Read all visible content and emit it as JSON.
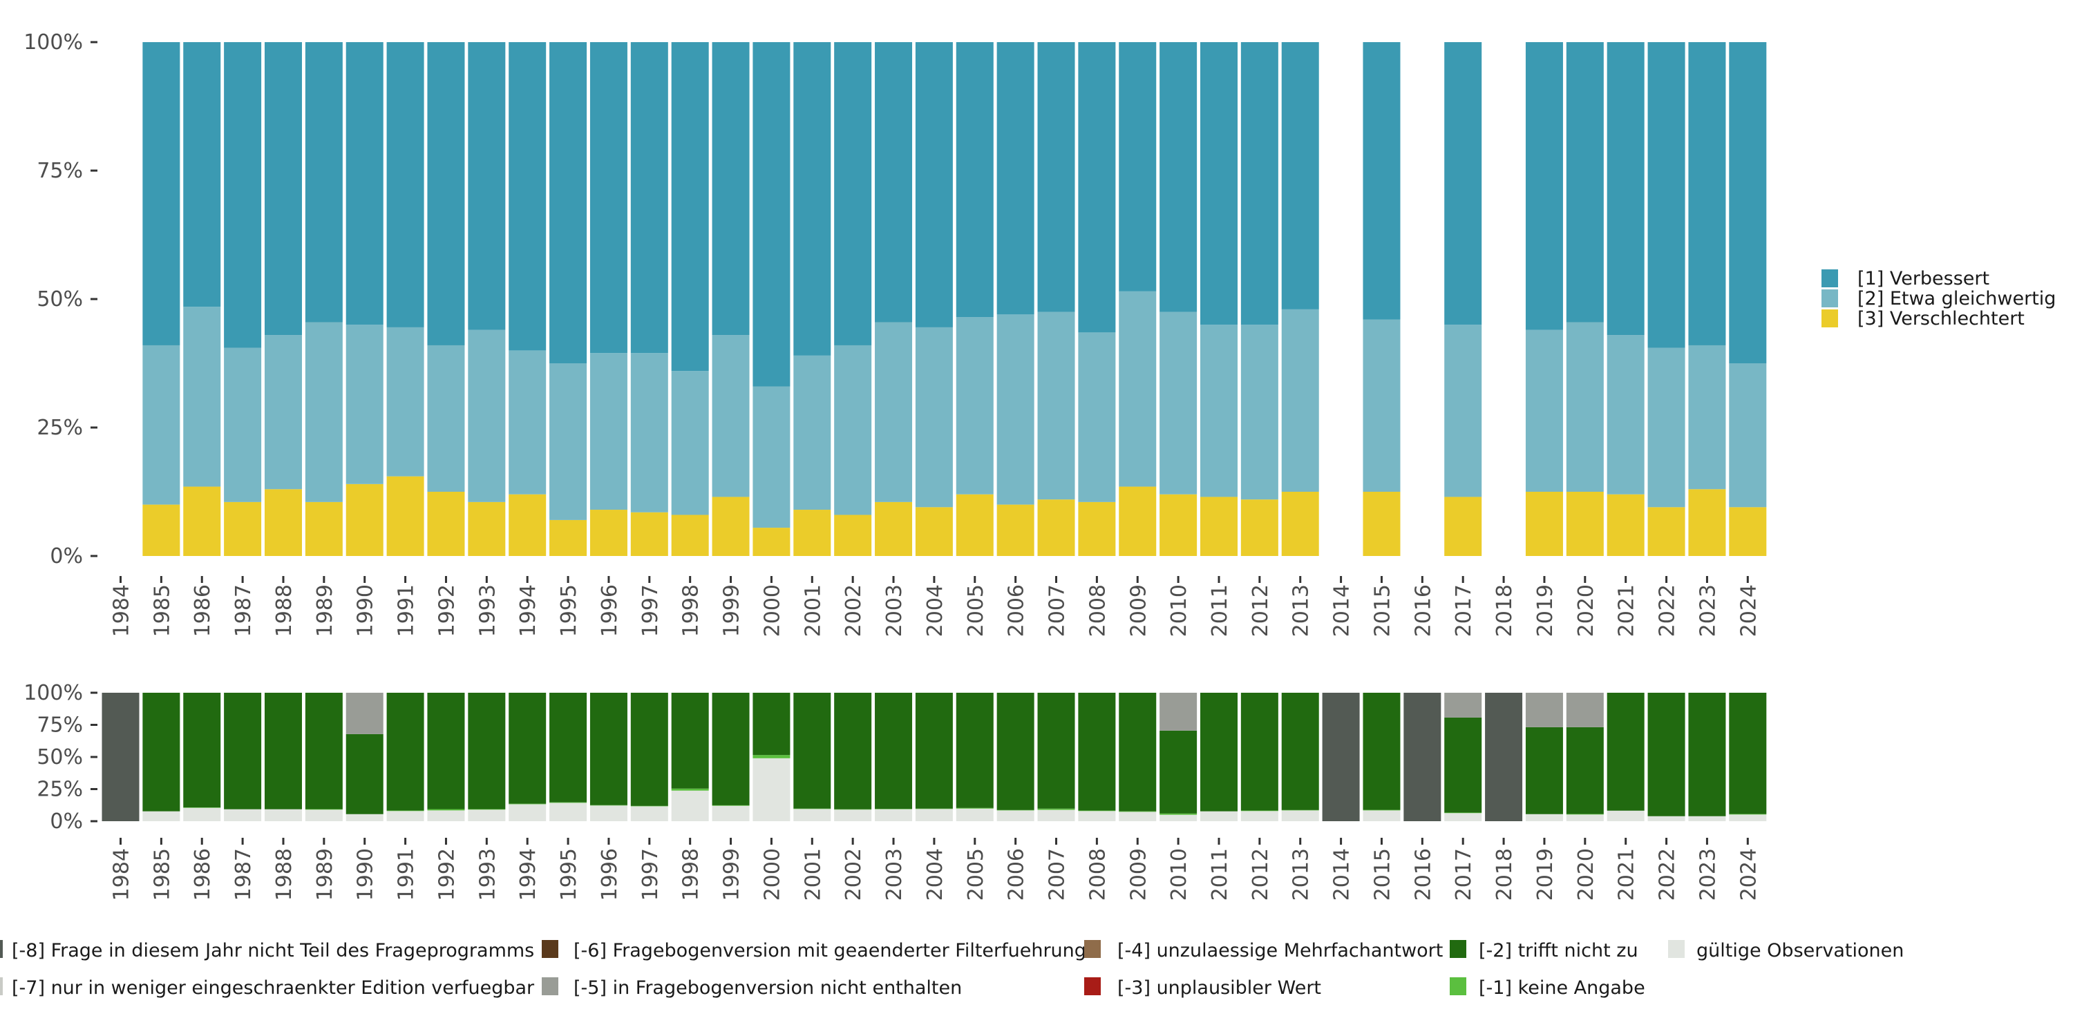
{
  "chart_data": [
    {
      "type": "bar",
      "stacked": true,
      "normalized": true,
      "title": "",
      "xlabel": "",
      "ylabel": "",
      "ylim": [
        0,
        100
      ],
      "yticks": [
        "0%",
        "25%",
        "50%",
        "75%",
        "100%"
      ],
      "grid": false,
      "legend_position": "right",
      "categories": [
        "1984",
        "1985",
        "1986",
        "1987",
        "1988",
        "1989",
        "1990",
        "1991",
        "1992",
        "1993",
        "1994",
        "1995",
        "1996",
        "1997",
        "1998",
        "1999",
        "2000",
        "2001",
        "2002",
        "2003",
        "2004",
        "2005",
        "2006",
        "2007",
        "2008",
        "2009",
        "2010",
        "2011",
        "2012",
        "2013",
        "2014",
        "2015",
        "2016",
        "2017",
        "2018",
        "2019",
        "2020",
        "2021",
        "2022",
        "2023",
        "2024"
      ],
      "series": [
        {
          "name": "[3] Verschlechtert",
          "color": "#ebcc2a",
          "values": [
            null,
            10,
            13.5,
            10.5,
            13,
            10.5,
            14,
            15.5,
            12.5,
            10.5,
            12,
            7,
            9,
            8.5,
            8,
            11.5,
            5.5,
            9,
            8,
            10.5,
            9.5,
            12,
            10,
            11,
            10.5,
            13.5,
            12,
            11.5,
            11,
            12.5,
            null,
            12.5,
            null,
            11.5,
            null,
            12.5,
            12.5,
            12,
            9.5,
            13,
            9.5
          ]
        },
        {
          "name": "[2] Etwa gleichwertig",
          "color": "#78b7c5",
          "values": [
            null,
            31,
            35,
            30,
            30,
            35,
            31,
            29,
            28.5,
            33.5,
            28,
            30.5,
            30.5,
            31,
            28,
            31.5,
            27.5,
            30,
            33,
            35,
            35,
            34.5,
            37,
            36.5,
            33,
            38,
            35.5,
            33.5,
            34,
            35.5,
            null,
            33.5,
            null,
            33.5,
            null,
            31.5,
            33,
            31,
            31,
            28,
            28
          ]
        },
        {
          "name": "[1] Verbessert",
          "color": "#3b9ab2",
          "values": [
            null,
            59,
            51.5,
            59.5,
            57,
            54.5,
            55,
            55.5,
            59,
            56,
            60,
            62.5,
            60.5,
            60.5,
            64,
            57,
            67,
            61,
            59,
            54.5,
            55.5,
            53.5,
            53,
            52.5,
            56.5,
            48.5,
            52.5,
            55,
            55,
            52,
            null,
            54,
            null,
            55,
            null,
            56,
            54.5,
            57,
            59.5,
            59,
            62.5
          ]
        }
      ]
    },
    {
      "type": "bar",
      "stacked": true,
      "normalized": true,
      "title": "",
      "xlabel": "",
      "ylabel": "",
      "ylim": [
        0,
        100
      ],
      "yticks": [
        "0%",
        "25%",
        "50%",
        "75%",
        "100%"
      ],
      "grid": false,
      "legend_position": "bottom",
      "categories": [
        "1984",
        "1985",
        "1986",
        "1987",
        "1988",
        "1989",
        "1990",
        "1991",
        "1992",
        "1993",
        "1994",
        "1995",
        "1996",
        "1997",
        "1998",
        "1999",
        "2000",
        "2001",
        "2002",
        "2003",
        "2004",
        "2005",
        "2006",
        "2007",
        "2008",
        "2009",
        "2010",
        "2011",
        "2012",
        "2013",
        "2014",
        "2015",
        "2016",
        "2017",
        "2018",
        "2019",
        "2020",
        "2021",
        "2022",
        "2023",
        "2024"
      ],
      "series": [
        {
          "name": "gültige Observationen",
          "color": "#e1e5e0",
          "values": [
            0,
            7.7,
            10.4,
            9.3,
            9.3,
            9,
            5.5,
            7.9,
            8.4,
            9,
            13.2,
            14.3,
            12.2,
            11.6,
            23.8,
            12,
            49,
            9.5,
            9,
            9.3,
            9.5,
            9.8,
            8.4,
            8.8,
            7.9,
            7.3,
            5,
            7.7,
            7.9,
            8.4,
            0,
            8.4,
            0,
            6.3,
            0,
            5.5,
            5.2,
            8.2,
            3.9,
            3.9,
            5.2
          ]
        },
        {
          "name": "[-1] keine Angabe",
          "color": "#5bbf3f",
          "values": [
            0,
            0,
            0.3,
            0,
            0,
            0.4,
            0,
            0.4,
            1,
            0.4,
            0.4,
            0.4,
            0.3,
            0.3,
            1.6,
            0.4,
            2.5,
            0.3,
            0.3,
            0.3,
            0.3,
            0.5,
            0.3,
            1,
            0.4,
            0.4,
            1,
            0,
            0.4,
            0.3,
            0,
            0.4,
            0,
            0.4,
            0,
            0,
            0.4,
            0,
            0,
            0,
            0.4
          ]
        },
        {
          "name": "[-2] trifft nicht zu",
          "color": "#216a10",
          "values": [
            0,
            92.3,
            89.3,
            90.7,
            90.7,
            90.6,
            62.3,
            91.7,
            90.6,
            90.6,
            86.4,
            85.3,
            87.5,
            88.1,
            74.6,
            87.6,
            48.5,
            90.2,
            90.7,
            90.4,
            90.2,
            89.7,
            91.3,
            90.2,
            91.7,
            92.3,
            64.5,
            92.3,
            91.7,
            91.3,
            0,
            91.2,
            0,
            74,
            0,
            67.7,
            67.6,
            91.8,
            96.1,
            96.1,
            94.4
          ]
        },
        {
          "name": "[-3] unplausibler Wert",
          "color": "#a81c17",
          "values": [
            0,
            0,
            0,
            0,
            0,
            0,
            0,
            0,
            0,
            0,
            0,
            0,
            0,
            0,
            0,
            0,
            0,
            0,
            0,
            0,
            0,
            0,
            0,
            0,
            0,
            0,
            0,
            0,
            0,
            0,
            0,
            0,
            0,
            0,
            0,
            0,
            0,
            0,
            0,
            0,
            0
          ]
        },
        {
          "name": "[-4] unzulaessige Mehrfachantwort",
          "color": "#8f6c4a",
          "values": [
            0,
            0,
            0,
            0,
            0,
            0,
            0,
            0,
            0,
            0,
            0,
            0,
            0,
            0,
            0,
            0,
            0,
            0,
            0,
            0,
            0,
            0,
            0,
            0,
            0,
            0,
            0,
            0,
            0,
            0,
            0,
            0,
            0,
            0,
            0,
            0,
            0,
            0,
            0,
            0,
            0
          ]
        },
        {
          "name": "[-5] in Fragebogenversion nicht enthalten",
          "color": "#999c96",
          "values": [
            0,
            0,
            0,
            0,
            0,
            0,
            32.2,
            0,
            0,
            0,
            0,
            0,
            0,
            0,
            0,
            0,
            0,
            0,
            0,
            0,
            0,
            0,
            0,
            0,
            0,
            0,
            29.5,
            0,
            0,
            0,
            0,
            0,
            0,
            19.3,
            0,
            26.8,
            26.8,
            0,
            0,
            0,
            0
          ]
        },
        {
          "name": "[-6] Fragebogenversion mit geaenderter Filterfuehrung",
          "color": "#5a391b",
          "values": [
            0,
            0,
            0,
            0,
            0,
            0,
            0,
            0,
            0,
            0,
            0,
            0,
            0,
            0,
            0,
            0,
            0,
            0,
            0,
            0,
            0,
            0,
            0,
            0,
            0,
            0,
            0,
            0,
            0,
            0,
            0,
            0,
            0,
            0,
            0,
            0,
            0,
            0,
            0,
            0,
            0
          ]
        },
        {
          "name": "[-7] nur in weniger eingeschraenkter Edition verfuegbar",
          "color": "#c9cbc6",
          "values": [
            0,
            0,
            0,
            0,
            0,
            0,
            0,
            0,
            0,
            0,
            0,
            0,
            0,
            0,
            0,
            0,
            0,
            0,
            0,
            0,
            0,
            0,
            0,
            0,
            0,
            0,
            0,
            0,
            0,
            0,
            0,
            0,
            0,
            0,
            0,
            0,
            0,
            0,
            0,
            0,
            0
          ]
        },
        {
          "name": "[-8] Frage in diesem Jahr nicht Teil des Frageprogramms",
          "color": "#535a54",
          "values": [
            100,
            0,
            0,
            0,
            0,
            0,
            0,
            0,
            0,
            0,
            0,
            0,
            0,
            0,
            0,
            0,
            0,
            0,
            0,
            0,
            0,
            0,
            0,
            0,
            0,
            0,
            0,
            0,
            0,
            0,
            100,
            0,
            100,
            0,
            100,
            0,
            0,
            0,
            0,
            0,
            0
          ]
        }
      ]
    }
  ]
}
